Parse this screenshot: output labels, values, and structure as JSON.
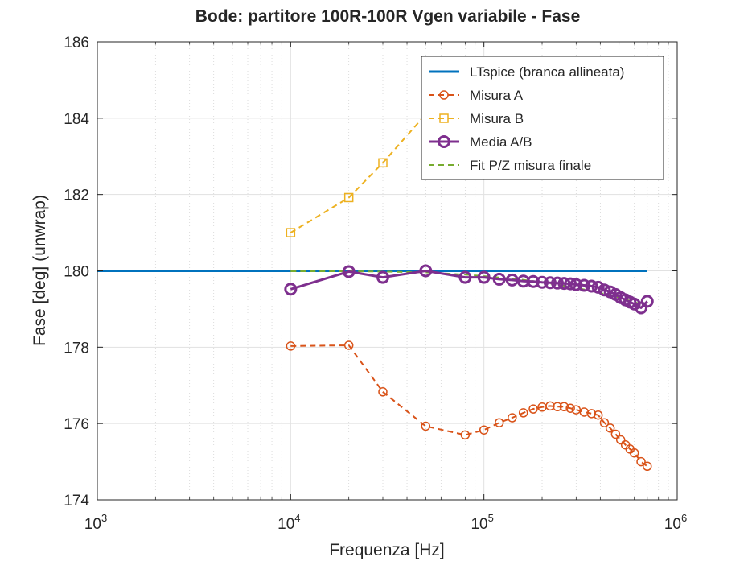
{
  "chart_data": {
    "type": "line",
    "title": "Bode: partitore 100R-100R Vgen variabile - Fase",
    "xlabel": "Frequenza [Hz]",
    "ylabel": "Fase [deg] (unwrap)",
    "xscale": "log",
    "xlim": [
      1000,
      1000000
    ],
    "ylim": [
      174,
      186
    ],
    "x_ticks": [
      {
        "value": 1000,
        "base": "10",
        "exp": "3"
      },
      {
        "value": 10000,
        "base": "10",
        "exp": "4"
      },
      {
        "value": 100000,
        "base": "10",
        "exp": "5"
      },
      {
        "value": 1000000,
        "base": "10",
        "exp": "6"
      }
    ],
    "y_ticks": [
      174,
      176,
      178,
      180,
      182,
      184,
      186
    ],
    "grid": true,
    "legend_position": "top-right",
    "series": [
      {
        "name": "LTspice (branca allineata)",
        "color": "#0072BD",
        "line": "solid",
        "marker": "none",
        "x": [
          1000,
          700000
        ],
        "y": [
          180.0,
          180.0
        ]
      },
      {
        "name": "Misura A",
        "color": "#D95319",
        "line": "dashed",
        "marker": "circle",
        "x": [
          10000,
          20000,
          30000,
          50000,
          80000,
          100000,
          120000,
          140000,
          160000,
          180000,
          200000,
          220000,
          240000,
          260000,
          280000,
          300000,
          330000,
          360000,
          390000,
          420000,
          450000,
          480000,
          510000,
          540000,
          570000,
          600000,
          650000,
          700000
        ],
        "y": [
          178.03,
          178.05,
          176.83,
          175.93,
          175.7,
          175.83,
          176.02,
          176.15,
          176.28,
          176.38,
          176.43,
          176.46,
          176.44,
          176.44,
          176.4,
          176.36,
          176.3,
          176.26,
          176.22,
          176.02,
          175.88,
          175.72,
          175.57,
          175.44,
          175.33,
          175.23,
          175.0,
          174.88
        ]
      },
      {
        "name": "Misura B",
        "color": "#EDB120",
        "line": "dashed",
        "marker": "square",
        "x": [
          10000,
          20000,
          30000,
          50000
        ],
        "y": [
          181.0,
          181.92,
          182.83,
          184.1
        ]
      },
      {
        "name": "Media A/B",
        "color": "#7E2F8E",
        "line": "solid",
        "marker": "circle",
        "x": [
          10000,
          20000,
          30000,
          50000,
          80000,
          100000,
          120000,
          140000,
          160000,
          180000,
          200000,
          220000,
          240000,
          260000,
          280000,
          300000,
          330000,
          360000,
          390000,
          420000,
          450000,
          480000,
          510000,
          540000,
          570000,
          600000,
          650000,
          700000
        ],
        "y": [
          179.52,
          179.98,
          179.83,
          180.0,
          179.83,
          179.83,
          179.78,
          179.76,
          179.73,
          179.72,
          179.7,
          179.69,
          179.68,
          179.67,
          179.66,
          179.64,
          179.62,
          179.6,
          179.57,
          179.5,
          179.45,
          179.38,
          179.3,
          179.24,
          179.18,
          179.13,
          179.03,
          179.2
        ]
      },
      {
        "name": "Fit P/Z misura finale",
        "color": "#77AC30",
        "line": "dashed",
        "marker": "none",
        "x": [
          10000,
          20000,
          30000,
          50000,
          80000,
          100000,
          150000,
          200000,
          300000,
          400000,
          500000,
          600000,
          700000
        ],
        "y": [
          179.99,
          179.99,
          179.98,
          179.96,
          179.9,
          179.86,
          179.78,
          179.7,
          179.56,
          179.42,
          179.3,
          179.18,
          179.08
        ]
      }
    ]
  }
}
